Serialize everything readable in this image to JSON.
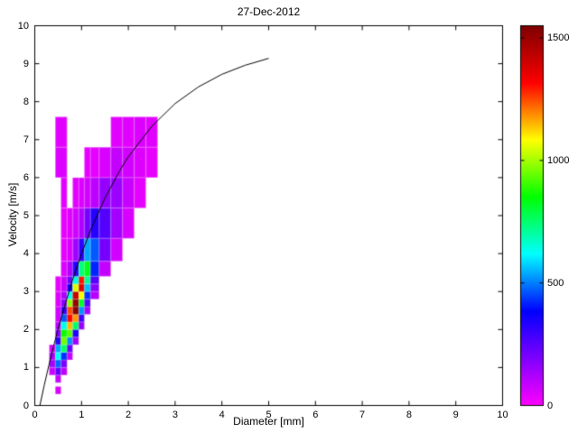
{
  "figure": {
    "title": "27-Dec-2012",
    "xlabel": "Diameter [mm]",
    "ylabel": "Velocity [m/s]"
  },
  "layout_colors": {
    "background": "#ffffff",
    "axis": "#000000",
    "text": "#000000",
    "curve": "#000000"
  },
  "chart_data": {
    "type": "heatmap",
    "title": "27-Dec-2012",
    "xlabel": "Diameter [mm]",
    "ylabel": "Velocity [m/s]",
    "xlim": [
      0,
      10
    ],
    "ylim": [
      0,
      10
    ],
    "xticks": [
      0,
      1,
      2,
      3,
      4,
      5,
      6,
      7,
      8,
      9,
      10
    ],
    "yticks": [
      0,
      1,
      2,
      3,
      4,
      5,
      6,
      7,
      8,
      9,
      10
    ],
    "grid": false,
    "legend": "none",
    "colorbar": {
      "position": "right",
      "vmin": 0,
      "vmax": 1550,
      "ticks": [
        0,
        500,
        1000,
        1500
      ]
    },
    "colormap_stops": [
      {
        "t": 0.0,
        "c": "#ff00ff"
      },
      {
        "t": 0.25,
        "c": "#0000ff"
      },
      {
        "t": 0.4,
        "c": "#00ffff"
      },
      {
        "t": 0.55,
        "c": "#00ff00"
      },
      {
        "t": 0.7,
        "c": "#ffff00"
      },
      {
        "t": 0.85,
        "c": "#ff0000"
      },
      {
        "t": 1.0,
        "c": "#7f0000"
      }
    ],
    "cells_format": [
      "diameter_min_mm",
      "velocity_min_ms",
      "diameter_width_mm",
      "velocity_height_ms",
      "count"
    ],
    "cells": [
      [
        0.44,
        0.3,
        0.12,
        0.2,
        60
      ],
      [
        0.31,
        0.8,
        0.13,
        0.2,
        80
      ],
      [
        0.31,
        1.0,
        0.13,
        0.2,
        140
      ],
      [
        0.31,
        1.2,
        0.13,
        0.2,
        120
      ],
      [
        0.31,
        1.4,
        0.13,
        0.2,
        70
      ],
      [
        0.44,
        0.6,
        0.12,
        0.2,
        90
      ],
      [
        0.44,
        0.8,
        0.12,
        0.2,
        250
      ],
      [
        0.44,
        1.0,
        0.12,
        0.2,
        480
      ],
      [
        0.44,
        1.2,
        0.12,
        0.2,
        620
      ],
      [
        0.44,
        1.4,
        0.12,
        0.2,
        540
      ],
      [
        0.44,
        1.6,
        0.12,
        0.2,
        330
      ],
      [
        0.44,
        1.8,
        0.12,
        0.2,
        180
      ],
      [
        0.44,
        2.0,
        0.12,
        0.2,
        110
      ],
      [
        0.44,
        2.2,
        0.12,
        0.4,
        70
      ],
      [
        0.44,
        2.6,
        0.12,
        0.4,
        50
      ],
      [
        0.44,
        3.0,
        0.12,
        0.4,
        35
      ],
      [
        0.44,
        6.0,
        0.25,
        0.8,
        55
      ],
      [
        0.44,
        6.8,
        0.25,
        0.8,
        45
      ],
      [
        0.56,
        0.8,
        0.13,
        0.2,
        100
      ],
      [
        0.56,
        1.0,
        0.13,
        0.2,
        200
      ],
      [
        0.56,
        1.2,
        0.13,
        0.2,
        430
      ],
      [
        0.56,
        1.4,
        0.13,
        0.2,
        760
      ],
      [
        0.56,
        1.6,
        0.13,
        0.2,
        950
      ],
      [
        0.56,
        1.8,
        0.13,
        0.2,
        860
      ],
      [
        0.56,
        2.0,
        0.13,
        0.2,
        640
      ],
      [
        0.56,
        2.2,
        0.13,
        0.2,
        470
      ],
      [
        0.56,
        2.4,
        0.13,
        0.2,
        310
      ],
      [
        0.56,
        2.6,
        0.13,
        0.2,
        180
      ],
      [
        0.56,
        2.8,
        0.13,
        0.2,
        120
      ],
      [
        0.56,
        3.0,
        0.13,
        0.4,
        80
      ],
      [
        0.56,
        3.4,
        0.13,
        0.4,
        55
      ],
      [
        0.56,
        3.8,
        0.13,
        0.6,
        40
      ],
      [
        0.56,
        4.4,
        0.13,
        0.8,
        35
      ],
      [
        0.56,
        5.2,
        0.13,
        0.8,
        45
      ],
      [
        0.69,
        1.2,
        0.12,
        0.2,
        90
      ],
      [
        0.69,
        1.4,
        0.12,
        0.2,
        230
      ],
      [
        0.69,
        1.6,
        0.12,
        0.2,
        520
      ],
      [
        0.69,
        1.8,
        0.12,
        0.2,
        930
      ],
      [
        0.69,
        2.0,
        0.12,
        0.2,
        1150
      ],
      [
        0.69,
        2.2,
        0.12,
        0.2,
        1320
      ],
      [
        0.69,
        2.4,
        0.12,
        0.2,
        1250
      ],
      [
        0.69,
        2.6,
        0.12,
        0.2,
        980
      ],
      [
        0.69,
        2.8,
        0.12,
        0.2,
        640
      ],
      [
        0.69,
        3.0,
        0.12,
        0.2,
        380
      ],
      [
        0.69,
        3.2,
        0.12,
        0.2,
        220
      ],
      [
        0.69,
        3.4,
        0.12,
        0.4,
        120
      ],
      [
        0.69,
        3.8,
        0.12,
        0.6,
        60
      ],
      [
        0.69,
        4.4,
        0.12,
        0.8,
        45
      ],
      [
        0.81,
        1.6,
        0.13,
        0.2,
        150
      ],
      [
        0.81,
        1.8,
        0.13,
        0.2,
        340
      ],
      [
        0.81,
        2.0,
        0.13,
        0.2,
        760
      ],
      [
        0.81,
        2.2,
        0.13,
        0.2,
        1180
      ],
      [
        0.81,
        2.4,
        0.13,
        0.2,
        1540
      ],
      [
        0.81,
        2.6,
        0.13,
        0.2,
        1510
      ],
      [
        0.81,
        2.8,
        0.13,
        0.2,
        1420
      ],
      [
        0.81,
        3.0,
        0.13,
        0.2,
        1050
      ],
      [
        0.81,
        3.2,
        0.13,
        0.2,
        650
      ],
      [
        0.81,
        3.4,
        0.13,
        0.4,
        330
      ],
      [
        0.81,
        3.8,
        0.13,
        0.6,
        140
      ],
      [
        0.81,
        4.4,
        0.13,
        0.8,
        70
      ],
      [
        0.81,
        5.2,
        0.13,
        0.8,
        45
      ],
      [
        0.94,
        2.0,
        0.12,
        0.2,
        160
      ],
      [
        0.94,
        2.2,
        0.12,
        0.2,
        290
      ],
      [
        0.94,
        2.4,
        0.12,
        0.2,
        520
      ],
      [
        0.94,
        2.6,
        0.12,
        0.2,
        820
      ],
      [
        0.94,
        2.8,
        0.12,
        0.2,
        1080
      ],
      [
        0.94,
        3.0,
        0.12,
        0.2,
        1380
      ],
      [
        0.94,
        3.2,
        0.12,
        0.2,
        1300
      ],
      [
        0.94,
        3.4,
        0.12,
        0.4,
        740
      ],
      [
        0.94,
        3.8,
        0.12,
        0.6,
        320
      ],
      [
        0.94,
        4.4,
        0.12,
        0.8,
        120
      ],
      [
        0.94,
        5.2,
        0.12,
        0.8,
        55
      ],
      [
        1.06,
        2.4,
        0.13,
        0.2,
        140
      ],
      [
        1.06,
        2.6,
        0.13,
        0.2,
        260
      ],
      [
        1.06,
        2.8,
        0.13,
        0.2,
        430
      ],
      [
        1.06,
        3.0,
        0.13,
        0.2,
        560
      ],
      [
        1.06,
        3.2,
        0.13,
        0.2,
        720
      ],
      [
        1.06,
        3.4,
        0.13,
        0.4,
        830
      ],
      [
        1.06,
        3.8,
        0.13,
        0.6,
        540
      ],
      [
        1.06,
        4.4,
        0.13,
        0.8,
        210
      ],
      [
        1.06,
        5.2,
        0.13,
        0.8,
        70
      ],
      [
        1.06,
        6.0,
        0.13,
        0.8,
        35
      ],
      [
        1.19,
        2.8,
        0.185,
        0.2,
        110
      ],
      [
        1.19,
        3.0,
        0.185,
        0.2,
        180
      ],
      [
        1.19,
        3.2,
        0.185,
        0.2,
        260
      ],
      [
        1.19,
        3.4,
        0.185,
        0.4,
        420
      ],
      [
        1.19,
        3.8,
        0.185,
        0.6,
        470
      ],
      [
        1.19,
        4.4,
        0.185,
        0.8,
        330
      ],
      [
        1.19,
        5.2,
        0.185,
        0.8,
        100
      ],
      [
        1.19,
        6.0,
        0.185,
        0.8,
        40
      ],
      [
        1.375,
        3.4,
        0.25,
        0.4,
        90
      ],
      [
        1.375,
        3.8,
        0.25,
        0.6,
        210
      ],
      [
        1.375,
        4.4,
        0.25,
        0.8,
        260
      ],
      [
        1.375,
        5.2,
        0.25,
        0.8,
        160
      ],
      [
        1.375,
        6.0,
        0.25,
        0.8,
        60
      ],
      [
        1.625,
        3.8,
        0.25,
        0.6,
        70
      ],
      [
        1.625,
        4.4,
        0.25,
        0.8,
        140
      ],
      [
        1.625,
        5.2,
        0.25,
        0.8,
        150
      ],
      [
        1.625,
        6.0,
        0.25,
        0.8,
        90
      ],
      [
        1.625,
        6.8,
        0.25,
        0.8,
        45
      ],
      [
        1.875,
        4.4,
        0.25,
        0.8,
        60
      ],
      [
        1.875,
        5.2,
        0.25,
        0.8,
        85
      ],
      [
        1.875,
        6.0,
        0.25,
        0.8,
        70
      ],
      [
        1.875,
        6.8,
        0.25,
        0.8,
        45
      ],
      [
        2.125,
        5.2,
        0.25,
        0.8,
        40
      ],
      [
        2.125,
        6.0,
        0.25,
        0.8,
        50
      ],
      [
        2.125,
        6.8,
        0.25,
        0.8,
        55
      ],
      [
        2.375,
        6.0,
        0.25,
        0.8,
        35
      ],
      [
        2.375,
        6.8,
        0.25,
        0.8,
        45
      ]
    ],
    "curve": {
      "name": "terminal-velocity-curve",
      "color": "#000000",
      "points": [
        [
          0.11,
          0.0
        ],
        [
          0.2,
          0.52
        ],
        [
          0.3,
          1.05
        ],
        [
          0.4,
          1.55
        ],
        [
          0.5,
          2.02
        ],
        [
          0.6,
          2.46
        ],
        [
          0.8,
          3.28
        ],
        [
          1.0,
          4.0
        ],
        [
          1.2,
          4.64
        ],
        [
          1.5,
          5.46
        ],
        [
          1.8,
          6.15
        ],
        [
          2.0,
          6.55
        ],
        [
          2.5,
          7.35
        ],
        [
          3.0,
          7.95
        ],
        [
          3.5,
          8.39
        ],
        [
          4.0,
          8.72
        ],
        [
          4.5,
          8.96
        ],
        [
          5.0,
          9.14
        ]
      ]
    }
  }
}
